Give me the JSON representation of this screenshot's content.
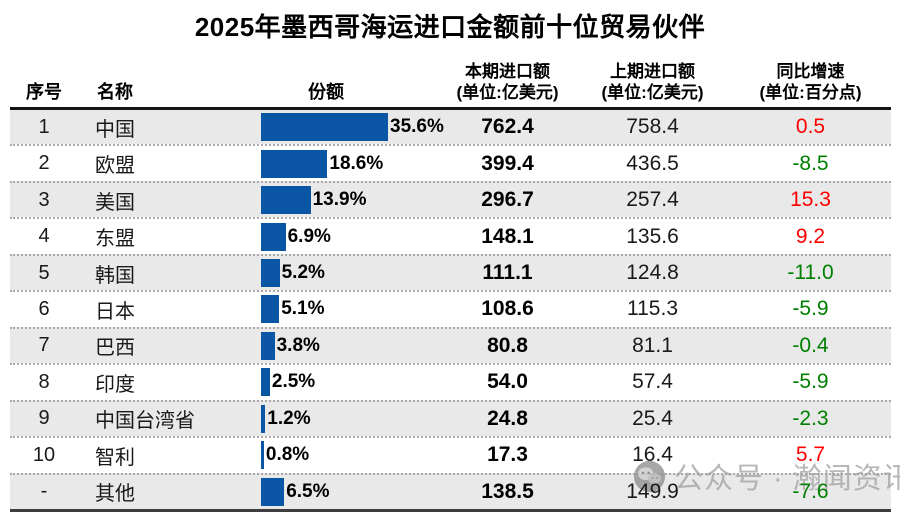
{
  "title": "2025年墨西哥海运进口金额前十位贸易伙伴",
  "watermark": {
    "icon": "wechat-official-account-icon",
    "text": "公众号 · 瀚闻资讯"
  },
  "colors": {
    "bar": "#0b56a4",
    "positive_growth": "#fe0000",
    "negative_growth": "#008000",
    "row_alt_bg": "#e9e9e9"
  },
  "chart_data": {
    "type": "bar",
    "title": "2025年墨西哥海运进口金额前十位贸易伙伴",
    "orientation": "horizontal",
    "share_axis_max_pct": 35.6,
    "columns": {
      "seq": "序号",
      "name": "名称",
      "share": "份额",
      "current_l1": "本期进口额",
      "current_l2": "(单位:亿美元)",
      "previous_l1": "上期进口额",
      "previous_l2": "(单位:亿美元)",
      "growth_l1": "同比增速",
      "growth_l2": "(单位:百分点)"
    },
    "rows": [
      {
        "seq": "1",
        "name": "中国",
        "share_pct": 35.6,
        "share_label": "35.6%",
        "current": "762.4",
        "previous": "758.4",
        "growth": "0.5",
        "trend": "positive"
      },
      {
        "seq": "2",
        "name": "欧盟",
        "share_pct": 18.6,
        "share_label": "18.6%",
        "current": "399.4",
        "previous": "436.5",
        "growth": "-8.5",
        "trend": "negative"
      },
      {
        "seq": "3",
        "name": "美国",
        "share_pct": 13.9,
        "share_label": "13.9%",
        "current": "296.7",
        "previous": "257.4",
        "growth": "15.3",
        "trend": "positive"
      },
      {
        "seq": "4",
        "name": "东盟",
        "share_pct": 6.9,
        "share_label": "6.9%",
        "current": "148.1",
        "previous": "135.6",
        "growth": "9.2",
        "trend": "positive"
      },
      {
        "seq": "5",
        "name": "韩国",
        "share_pct": 5.2,
        "share_label": "5.2%",
        "current": "111.1",
        "previous": "124.8",
        "growth": "-11.0",
        "trend": "negative"
      },
      {
        "seq": "6",
        "name": "日本",
        "share_pct": 5.1,
        "share_label": "5.1%",
        "current": "108.6",
        "previous": "115.3",
        "growth": "-5.9",
        "trend": "negative"
      },
      {
        "seq": "7",
        "name": "巴西",
        "share_pct": 3.8,
        "share_label": "3.8%",
        "current": "80.8",
        "previous": "81.1",
        "growth": "-0.4",
        "trend": "negative"
      },
      {
        "seq": "8",
        "name": "印度",
        "share_pct": 2.5,
        "share_label": "2.5%",
        "current": "54.0",
        "previous": "57.4",
        "growth": "-5.9",
        "trend": "negative"
      },
      {
        "seq": "9",
        "name": "中国台湾省",
        "share_pct": 1.2,
        "share_label": "1.2%",
        "current": "24.8",
        "previous": "25.4",
        "growth": "-2.3",
        "trend": "negative"
      },
      {
        "seq": "10",
        "name": "智利",
        "share_pct": 0.8,
        "share_label": "0.8%",
        "current": "17.3",
        "previous": "16.4",
        "growth": "5.7",
        "trend": "positive"
      },
      {
        "seq": "-",
        "name": "其他",
        "share_pct": 6.5,
        "share_label": "6.5%",
        "current": "138.5",
        "previous": "149.9",
        "growth": "-7.6",
        "trend": "negative"
      }
    ]
  }
}
